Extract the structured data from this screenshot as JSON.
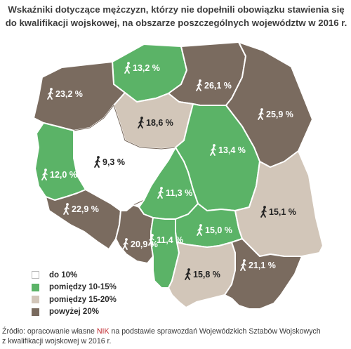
{
  "title": {
    "line1": "Wskaźniki dotyczące mężczyzn, którzy nie dopełnili obowiązku stawienia się",
    "line2": "do kwalifikacji wojskowej, na obszarze poszczególnych województw w 2016 r."
  },
  "colors": {
    "below10": "#ffffff",
    "range10_15": "#5bb367",
    "range15_20": "#d2c6b9",
    "above20": "#7a6b5f",
    "border": "#ffffff",
    "nik_red": "#c0282d"
  },
  "map": {
    "regions": [
      {
        "name": "pomorskie",
        "value": "13,2 %",
        "category": "range10_15"
      },
      {
        "name": "zachodniopomorskie",
        "value": "23,2 %",
        "category": "above20"
      },
      {
        "name": "warminsko-mazurskie",
        "value": "26,1 %",
        "category": "above20"
      },
      {
        "name": "podlaskie",
        "value": "25,9 %",
        "category": "above20"
      },
      {
        "name": "kujawsko-pomorskie",
        "value": "18,6 %",
        "category": "range15_20"
      },
      {
        "name": "wielkopolskie",
        "value": "9,3 %",
        "category": "below10"
      },
      {
        "name": "lubuskie",
        "value": "12,0 %",
        "category": "range10_15"
      },
      {
        "name": "mazowieckie",
        "value": "13,4 %",
        "category": "range10_15"
      },
      {
        "name": "lodzkie",
        "value": "11,3 %",
        "category": "range10_15"
      },
      {
        "name": "dolnoslaskie",
        "value": "22,9 %",
        "category": "above20"
      },
      {
        "name": "opolskie",
        "value": "20,9 %",
        "category": "above20"
      },
      {
        "name": "slaskie",
        "value": "11,4 %",
        "category": "range10_15"
      },
      {
        "name": "swietokrzyskie",
        "value": "15,0 %",
        "category": "range10_15"
      },
      {
        "name": "lubelskie",
        "value": "15,1 %",
        "category": "range15_20"
      },
      {
        "name": "malopolskie",
        "value": "15,8 %",
        "category": "range15_20"
      },
      {
        "name": "podkarpackie",
        "value": "21,1 %",
        "category": "above20"
      }
    ]
  },
  "legend": {
    "items": [
      {
        "label": "do 10%",
        "category": "below10"
      },
      {
        "label": "pomiędzy 10-15%",
        "category": "range10_15"
      },
      {
        "label": "pomiędzy 15-20%",
        "category": "range15_20"
      },
      {
        "label": "powyżej 20%",
        "category": "above20"
      }
    ]
  },
  "source": {
    "prefix": "Źródło: opracowanie własne ",
    "brand": "NIK",
    "rest": " na podstawie sprawozdań Wojewódzkich Sztabów Wojskowych",
    "line2": "z kwalifikacji wojskowej w 2016 r."
  }
}
